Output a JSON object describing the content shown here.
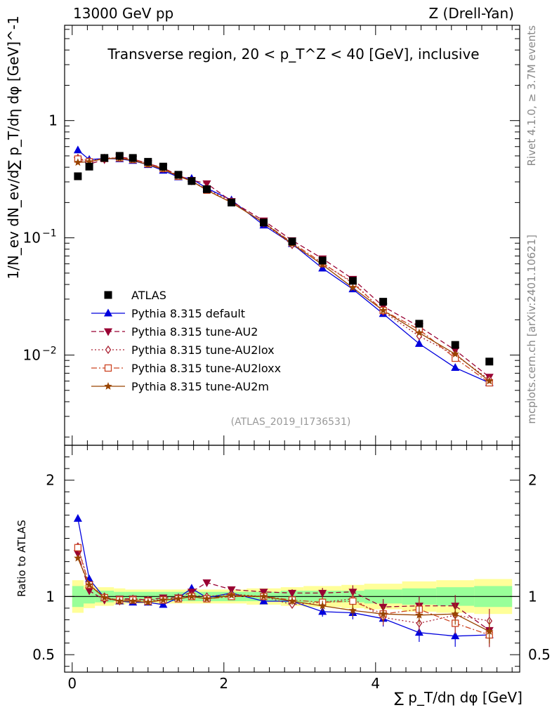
{
  "header": {
    "energy_label": "13000 GeV pp",
    "process_label": "Z (Drell-Yan)"
  },
  "side_labels": {
    "rivet": "Rivet 4.1.0, ≥ 3.7M events",
    "mcplots": "mcplots.cern.ch [arXiv:2401.10621]"
  },
  "colors": {
    "atlas": "#000000",
    "default": "#0000dd",
    "au2": "#990033",
    "au2lox": "#aa2233",
    "au2loxx": "#cc4422",
    "au2m": "#994400",
    "band_inner": "#99ff99",
    "band_outer": "#ffff99"
  },
  "chart_data": [
    {
      "type": "line",
      "panel": "main",
      "title": "Transverse region, 20 < p_T^Z < 40 [GeV], inclusive",
      "watermark": "(ATLAS_2019_I1736531)",
      "ylabel": "1/N_ev dN_ev/d∑ p_T/dη dφ [GeV]^-1",
      "yscale": "log",
      "xlim": [
        -0.1,
        5.9
      ],
      "ylim": [
        0.0017,
        6.5
      ],
      "ytick_labels": [
        "1",
        "10^-1",
        "10^-2"
      ],
      "x": [
        0.075,
        0.225,
        0.425,
        0.625,
        0.8,
        1.0,
        1.2,
        1.4,
        1.575,
        1.775,
        2.1,
        2.525,
        2.9,
        3.3,
        3.7,
        4.1,
        4.575,
        5.05,
        5.5
      ],
      "legend": [
        "ATLAS",
        "Pythia 8.315 default",
        "Pythia 8.315 tune-AU2",
        "Pythia 8.315 tune-AU2lox",
        "Pythia 8.315 tune-AU2loxx",
        "Pythia 8.315 tune-AU2m"
      ],
      "series": [
        {
          "name": "ATLAS",
          "style": "marker",
          "marker": "square",
          "color": "#000000",
          "values": [
            0.335,
            0.405,
            0.48,
            0.5,
            0.48,
            0.445,
            0.405,
            0.345,
            0.305,
            0.26,
            0.2,
            0.135,
            0.093,
            0.064,
            0.043,
            0.0285,
            0.0185,
            0.0122,
            0.0088
          ]
        },
        {
          "name": "Pythia 8.315 default",
          "style": "solid",
          "marker": "triangle-up",
          "color": "#0000dd",
          "values": [
            0.56,
            0.465,
            0.475,
            0.47,
            0.455,
            0.42,
            0.375,
            0.33,
            0.32,
            0.265,
            0.21,
            0.128,
            0.089,
            0.055,
            0.0365,
            0.0225,
            0.0125,
            0.0078,
            0.0058
          ]
        },
        {
          "name": "Pythia 8.315 tune-AU2",
          "style": "dashed",
          "marker": "triangle-down",
          "color": "#990033",
          "values": [
            0.46,
            0.425,
            0.465,
            0.49,
            0.47,
            0.43,
            0.395,
            0.34,
            0.31,
            0.29,
            0.205,
            0.14,
            0.095,
            0.0665,
            0.0445,
            0.026,
            0.0175,
            0.011,
            0.0065
          ]
        },
        {
          "name": "Pythia 8.315 tune-AU2lox",
          "style": "dotted",
          "marker": "diamond-open",
          "color": "#aa2233",
          "values": [
            0.48,
            0.45,
            0.48,
            0.48,
            0.47,
            0.43,
            0.39,
            0.34,
            0.305,
            0.26,
            0.205,
            0.133,
            0.087,
            0.06,
            0.042,
            0.0235,
            0.0145,
            0.01,
            0.0062
          ]
        },
        {
          "name": "Pythia 8.315 tune-AU2loxx",
          "style": "dashdot",
          "marker": "square-open",
          "color": "#cc4422",
          "values": [
            0.47,
            0.445,
            0.475,
            0.48,
            0.465,
            0.43,
            0.39,
            0.335,
            0.305,
            0.255,
            0.2,
            0.135,
            0.091,
            0.061,
            0.041,
            0.024,
            0.0165,
            0.0094,
            0.0058
          ]
        },
        {
          "name": "Pythia 8.315 tune-AU2m",
          "style": "solid",
          "marker": "star",
          "color": "#994400",
          "values": [
            0.44,
            0.445,
            0.475,
            0.475,
            0.46,
            0.42,
            0.385,
            0.335,
            0.305,
            0.255,
            0.2,
            0.135,
            0.089,
            0.059,
            0.0375,
            0.024,
            0.0155,
            0.0102,
            0.006
          ]
        }
      ]
    },
    {
      "type": "line",
      "panel": "ratio",
      "ylabel": "Ratio to ATLAS",
      "xlabel": "∑ p_T/dη dφ [GeV]",
      "xlim": [
        -0.1,
        5.9
      ],
      "ylim": [
        0.35,
        2.3
      ],
      "xtick_labels": [
        "0",
        "2",
        "4"
      ],
      "ytick_labels": [
        "0.5",
        "1",
        "2"
      ],
      "x": [
        0.075,
        0.225,
        0.425,
        0.625,
        0.8,
        1.0,
        1.2,
        1.4,
        1.575,
        1.775,
        2.1,
        2.525,
        2.9,
        3.3,
        3.7,
        4.1,
        4.575,
        5.05,
        5.5
      ],
      "bins": [
        0,
        0.15,
        0.3,
        0.55,
        0.7,
        0.9,
        1.1,
        1.3,
        1.5,
        1.65,
        1.9,
        2.3,
        2.75,
        3.05,
        3.55,
        3.85,
        4.35,
        4.8,
        5.3,
        5.8
      ],
      "band_inner": [
        0.09,
        0.06,
        0.05,
        0.04,
        0.04,
        0.04,
        0.04,
        0.04,
        0.04,
        0.04,
        0.04,
        0.04,
        0.05,
        0.05,
        0.05,
        0.06,
        0.07,
        0.08,
        0.09
      ],
      "band_outer": [
        0.14,
        0.1,
        0.08,
        0.07,
        0.06,
        0.06,
        0.06,
        0.06,
        0.06,
        0.06,
        0.06,
        0.07,
        0.08,
        0.09,
        0.1,
        0.11,
        0.13,
        0.14,
        0.15
      ],
      "series": [
        {
          "name": "Pythia 8.315 default",
          "values": [
            1.67,
            1.15,
            0.99,
            0.96,
            0.95,
            0.95,
            0.93,
            0.99,
            1.07,
            0.99,
            1.03,
            0.96,
            0.96,
            0.87,
            0.86,
            0.81,
            0.69,
            0.66,
            0.67
          ]
        },
        {
          "name": "Pythia 8.315 tune-AU2",
          "values": [
            1.37,
            1.05,
            0.97,
            0.98,
            0.98,
            0.97,
            0.99,
            0.99,
            1.04,
            1.12,
            1.06,
            1.04,
            1.03,
            1.03,
            1.04,
            0.91,
            0.92,
            0.92,
            0.71
          ]
        },
        {
          "name": "Pythia 8.315 tune-AU2lox",
          "values": [
            1.43,
            1.1,
            1.0,
            0.96,
            0.98,
            0.97,
            0.97,
            0.99,
            1.01,
            1.0,
            1.02,
            1.0,
            0.93,
            0.95,
            0.98,
            0.82,
            0.77,
            0.84,
            0.79
          ]
        },
        {
          "name": "Pythia 8.315 tune-AU2loxx",
          "values": [
            1.42,
            1.1,
            0.99,
            0.97,
            0.97,
            0.96,
            0.97,
            0.98,
            1.0,
            0.98,
            1.0,
            1.0,
            0.97,
            0.95,
            0.96,
            0.85,
            0.89,
            0.77,
            0.67
          ]
        },
        {
          "name": "Pythia 8.315 tune-AU2m",
          "values": [
            1.33,
            1.1,
            0.99,
            0.96,
            0.96,
            0.95,
            0.97,
            0.98,
            1.0,
            0.98,
            1.01,
            1.0,
            0.96,
            0.92,
            0.88,
            0.85,
            0.84,
            0.85,
            0.7
          ]
        }
      ]
    }
  ]
}
